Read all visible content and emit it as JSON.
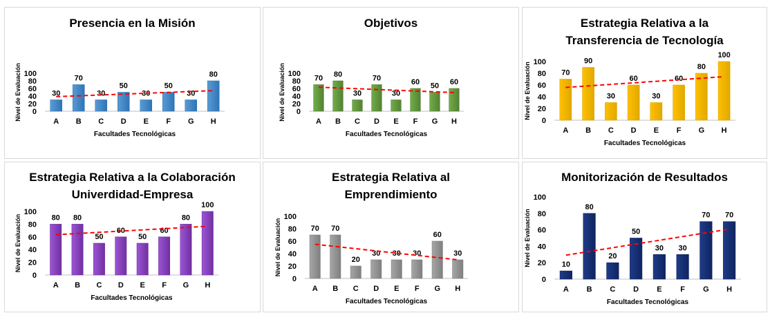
{
  "common": {
    "categories": [
      "A",
      "B",
      "C",
      "D",
      "E",
      "F",
      "G",
      "H"
    ],
    "xlabel": "Facultades Tecnológicas",
    "ylabel": "Nivel de Evaluación",
    "yticks": [
      0,
      20,
      40,
      60,
      80,
      100
    ],
    "trendline": {
      "style": "dashed",
      "color": "#ff0000"
    }
  },
  "chart_data": [
    {
      "type": "bar",
      "title_lines": [
        "Presencia  en la Misión"
      ],
      "title": "Presencia  en la Misión",
      "categories": [
        "A",
        "B",
        "C",
        "D",
        "E",
        "F",
        "G",
        "H"
      ],
      "values": [
        30,
        70,
        30,
        50,
        30,
        50,
        30,
        80
      ],
      "xlabel": "Facultades Tecnológicas",
      "ylabel": "Nivel de Evaluación",
      "ylim": [
        0,
        100
      ],
      "color": "#5b9bd5",
      "color_dark": "#2e75b6",
      "trendline": "linear"
    },
    {
      "type": "bar",
      "title_lines": [
        "Objetivos"
      ],
      "title": "Objetivos",
      "categories": [
        "A",
        "B",
        "C",
        "D",
        "E",
        "F",
        "G",
        "H"
      ],
      "values": [
        70,
        80,
        30,
        70,
        30,
        60,
        50,
        60
      ],
      "xlabel": "Facultades Tecnológicas",
      "ylabel": "Nivel de Evaluación",
      "ylim": [
        0,
        100
      ],
      "color": "#70ad47",
      "color_dark": "#548235",
      "trendline": "linear"
    },
    {
      "type": "bar",
      "title_lines": [
        "Estrategia  Relativa a la",
        "Transferencia  de Tecnología"
      ],
      "title": "Estrategia  Relativa a la Transferencia  de Tecnología",
      "categories": [
        "A",
        "B",
        "C",
        "D",
        "E",
        "F",
        "G",
        "H"
      ],
      "values": [
        70,
        90,
        30,
        60,
        30,
        60,
        80,
        100
      ],
      "xlabel": "Facultades Tecnológicas",
      "ylabel": "Nivel de Evaluación",
      "ylim": [
        0,
        100
      ],
      "color": "#ffc000",
      "color_dark": "#e0a800",
      "trendline": "linear"
    },
    {
      "type": "bar",
      "title_lines": [
        "Estrategia Relativa a la Colaboración",
        "Univerdidad-Empresa"
      ],
      "title": "Estrategia Relativa a la Colaboración Univerdidad-Empresa",
      "categories": [
        "A",
        "B",
        "C",
        "D",
        "E",
        "F",
        "G",
        "H"
      ],
      "values": [
        80,
        80,
        50,
        60,
        50,
        60,
        80,
        100
      ],
      "xlabel": "Facultades Tecnológicas",
      "ylabel": "Nivel de Evaluación",
      "ylim": [
        0,
        100
      ],
      "color": "#9c55d6",
      "color_dark": "#7030a0",
      "trendline": "linear"
    },
    {
      "type": "bar",
      "title_lines": [
        "Estrategia Relativa al",
        "Emprendimiento"
      ],
      "title": "Estrategia Relativa al Emprendimiento",
      "categories": [
        "A",
        "B",
        "C",
        "D",
        "E",
        "F",
        "G",
        "H"
      ],
      "values": [
        70,
        70,
        20,
        30,
        30,
        30,
        60,
        30
      ],
      "xlabel": "Facultades Tecnológicas",
      "ylabel": "Nivel de Evaluación",
      "ylim": [
        0,
        100
      ],
      "color": "#a6a6a6",
      "color_dark": "#7f7f7f",
      "trendline": "linear"
    },
    {
      "type": "bar",
      "title_lines": [
        "Monitorización  de Resultados"
      ],
      "title": "Monitorización  de Resultados",
      "categories": [
        "A",
        "B",
        "C",
        "D",
        "E",
        "F",
        "G",
        "H"
      ],
      "values": [
        10,
        80,
        20,
        50,
        30,
        30,
        70,
        70
      ],
      "xlabel": "Facultades Tecnológicas",
      "ylabel": "Nivel de Evaluación",
      "ylim": [
        0,
        100
      ],
      "color": "#1f3c88",
      "color_dark": "#0f2460",
      "trendline": "linear"
    }
  ]
}
